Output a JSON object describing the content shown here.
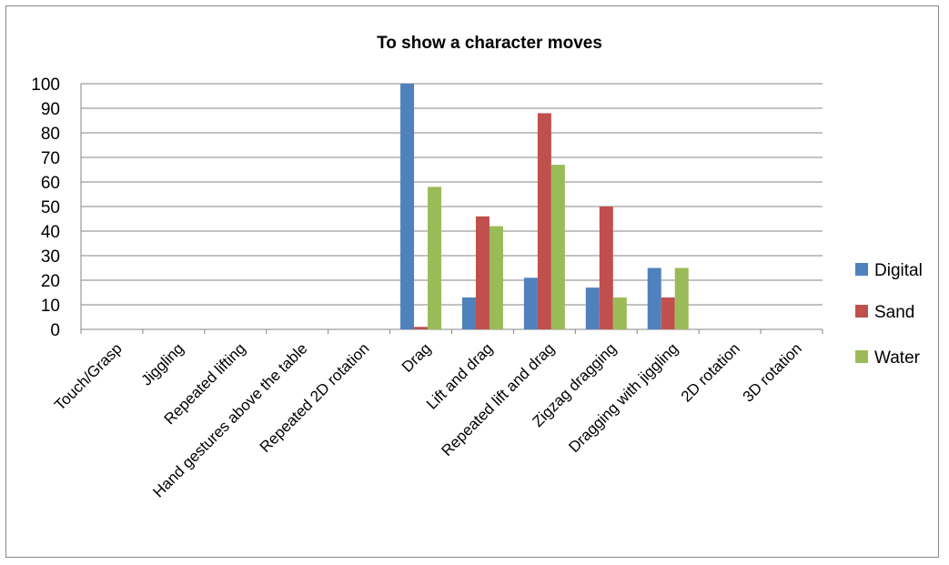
{
  "chart_data": {
    "type": "bar",
    "title": "To show a character moves",
    "xlabel": "",
    "ylabel": "",
    "ylim": [
      0,
      100
    ],
    "yticks": [
      0,
      10,
      20,
      30,
      40,
      50,
      60,
      70,
      80,
      90,
      100
    ],
    "grid": "horizontal",
    "legend_position": "right",
    "categories": [
      "Touch/Grasp",
      "Jiggling",
      "Repeated lifting",
      "Hand gestures above the table",
      "Repeated 2D rotation",
      "Drag",
      "Lift and drag",
      "Repeated lift and drag",
      "Zigzag dragging",
      "Dragging with jiggling",
      "2D rotation",
      "3D rotation"
    ],
    "series": [
      {
        "name": "Digital",
        "color": "#4F81BD",
        "values": [
          0,
          0,
          0,
          0,
          0,
          100,
          13,
          21,
          17,
          25,
          0,
          0
        ]
      },
      {
        "name": "Sand",
        "color": "#C0504D",
        "values": [
          0,
          0,
          0,
          0,
          0,
          1,
          46,
          88,
          50,
          13,
          0,
          0
        ]
      },
      {
        "name": "Water",
        "color": "#9BBB59",
        "values": [
          0,
          0,
          0,
          0,
          0,
          58,
          42,
          67,
          13,
          25,
          0,
          0
        ]
      }
    ]
  }
}
